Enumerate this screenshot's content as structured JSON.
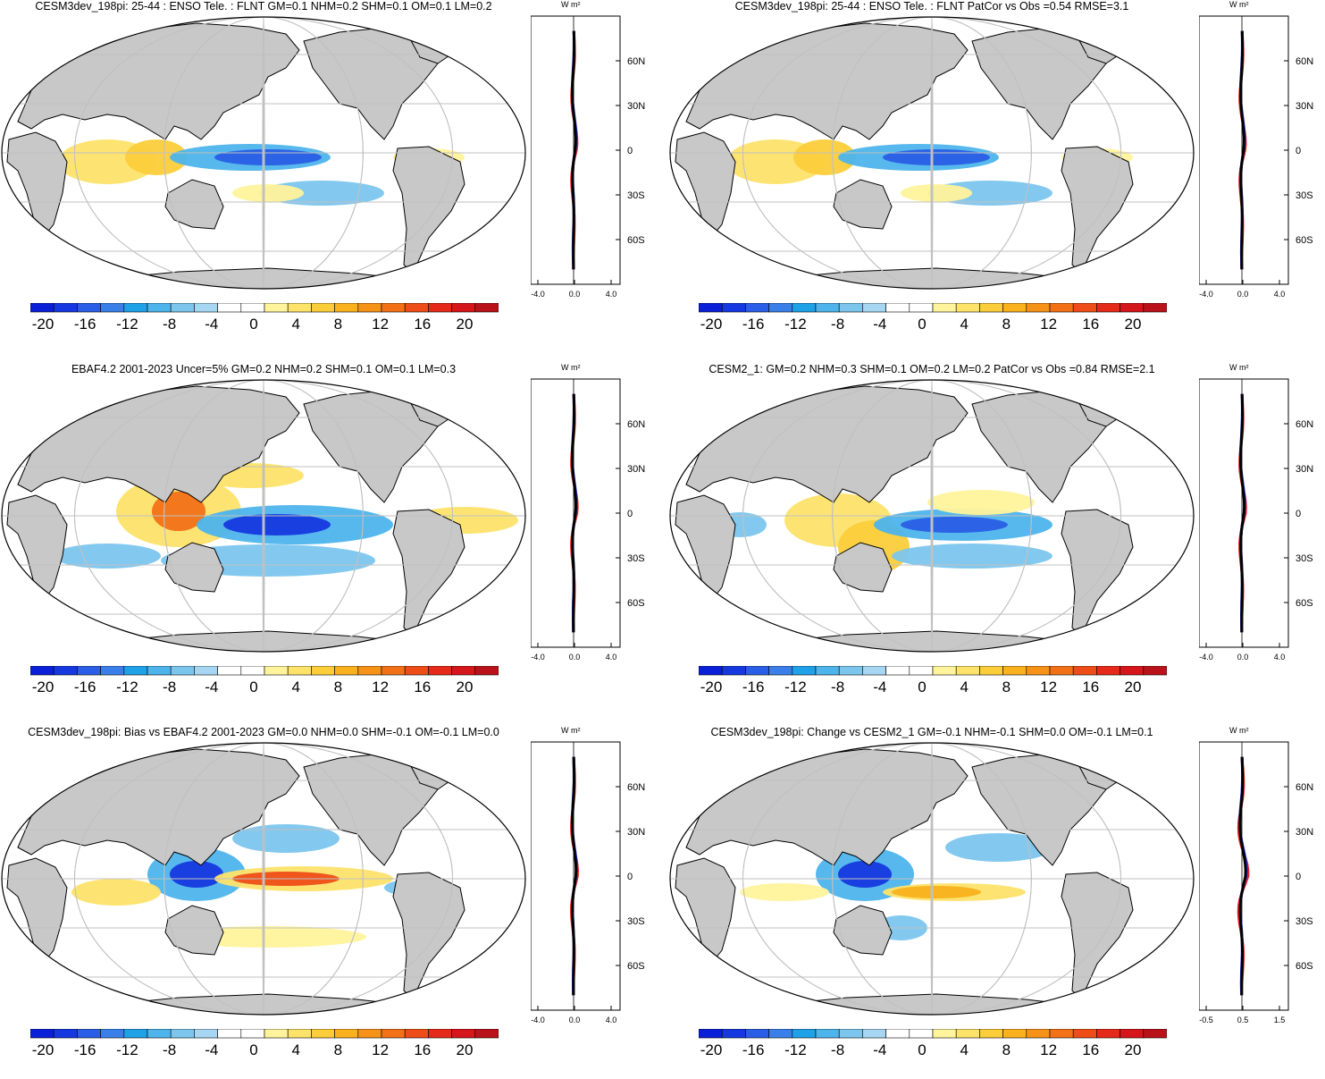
{
  "units": "W m²",
  "colorbar": {
    "labels": [
      "-20",
      "-16",
      "-12",
      "-8",
      "-4",
      "0",
      "4",
      "8",
      "12",
      "16",
      "20"
    ],
    "colors": [
      "#0a1fd8",
      "#1638e0",
      "#2a5ee6",
      "#3a7fe9",
      "#1fa1e8",
      "#4db4ec",
      "#7cc6ee",
      "#a6d6f2",
      "#ffffff",
      "#ffffff",
      "#fff39b",
      "#fde36a",
      "#fbcd3a",
      "#f9b11e",
      "#f69217",
      "#f27117",
      "#ee4d18",
      "#e52a19",
      "#d5161a",
      "#b9121a"
    ]
  },
  "lat_labels": [
    "60N",
    "30N",
    "0",
    "30S",
    "60S"
  ],
  "line_colors": {
    "red": "#ee2222",
    "blue": "#1f2de0",
    "black": "#000000",
    "land": "#c8c8c8"
  },
  "panels": [
    {
      "title": "CESM3dev_198pi: 25-44 : ENSO Tele. : FLNT GM=0.1 NHM=0.2 SHM=0.1 OM=0.1 LM=0.2",
      "xticks": [
        "-4.0",
        "0.0",
        "4.0"
      ]
    },
    {
      "title": "CESM3dev_198pi: 25-44 : ENSO Tele. : FLNT PatCor vs Obs =0.54 RMSE=3.1",
      "xticks": [
        "-4.0",
        "0.0",
        "4.0"
      ]
    },
    {
      "title": "EBAF4.2 2001-2023 Uncer=5% GM=0.2 NHM=0.2 SHM=0.1 OM=0.1 LM=0.3",
      "xticks": [
        "-4.0",
        "0.0",
        "4.0"
      ]
    },
    {
      "title": "CESM2_1: GM=0.2 NHM=0.3 SHM=0.1 OM=0.2 LM=0.2 PatCor vs Obs =0.84 RMSE=2.1",
      "xticks": [
        "-4.0",
        "0.0",
        "4.0"
      ]
    },
    {
      "title": "CESM3dev_198pi: Bias vs EBAF4.2 2001-2023 GM=0.0 NHM=0.0 SHM=-0.1 OM=-0.1 LM=0.0",
      "xticks": [
        "-4.0",
        "0.0",
        "4.0"
      ]
    },
    {
      "title": "CESM3dev_198pi: Change vs CESM2_1 GM=-0.1 NHM=-0.1 SHM=0.0 OM=-0.1 LM=0.1",
      "xticks": [
        "-0.5",
        "0.5",
        "1.5"
      ]
    }
  ]
}
